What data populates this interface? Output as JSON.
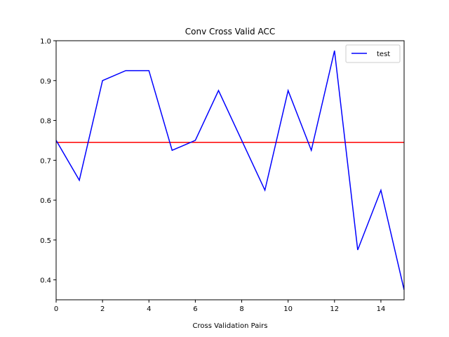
{
  "chart_data": {
    "type": "line",
    "title": "Conv Cross Valid ACC",
    "xlabel": "Cross Validation Pairs",
    "ylabel": "",
    "xlim": [
      0,
      15
    ],
    "ylim": [
      0.35,
      1.0
    ],
    "xticks": [
      0,
      2,
      4,
      6,
      8,
      10,
      12,
      14
    ],
    "yticks": [
      0.4,
      0.5,
      0.6,
      0.7,
      0.8,
      0.9,
      1.0
    ],
    "grid": false,
    "legend_position": "top-right",
    "series": [
      {
        "name": "test",
        "color": "#0000ff",
        "x": [
          0,
          1,
          2,
          3,
          4,
          5,
          6,
          7,
          8,
          9,
          10,
          11,
          12,
          13,
          14,
          15
        ],
        "values": [
          0.75,
          0.65,
          0.9,
          0.925,
          0.925,
          0.725,
          0.75,
          0.875,
          0.75,
          0.625,
          0.875,
          0.725,
          0.975,
          0.475,
          0.625,
          0.375
        ]
      }
    ],
    "hlines": [
      {
        "value": 0.745,
        "color": "#ff0000"
      }
    ]
  }
}
